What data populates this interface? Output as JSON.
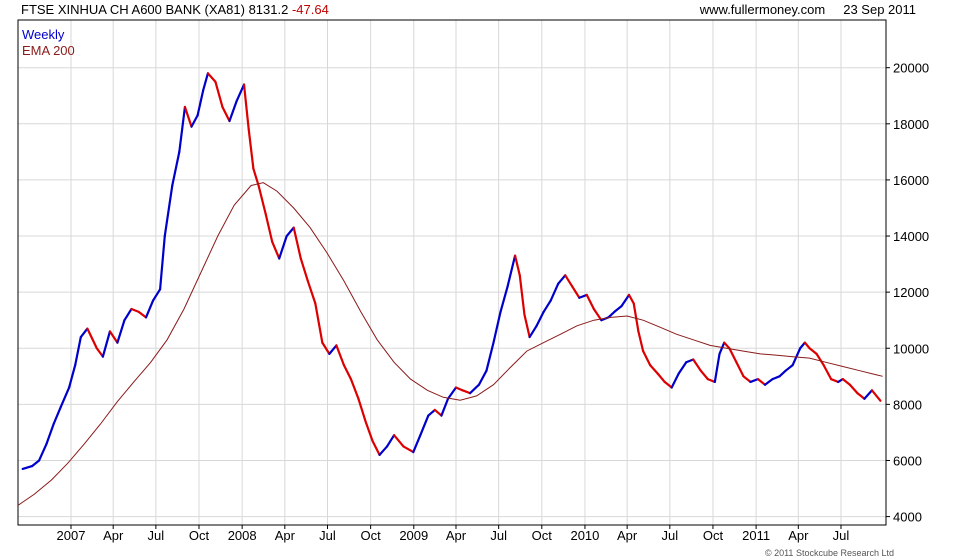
{
  "header": {
    "title": "FTSE XINHUA CH A600 BANK (XA81) 8131.2",
    "change": "-47.64",
    "site": "www.fullermoney.com",
    "date": "23 Sep 2011"
  },
  "legend": {
    "weekly": "Weekly",
    "ema": "EMA 200"
  },
  "copyright": "© 2011 Stockcube Research Ltd",
  "colors": {
    "up": "#0000cc",
    "down": "#dd0000",
    "ema": "#8b1a1a",
    "grid": "#d8d8d8"
  },
  "chart_data": {
    "type": "line",
    "title": "FTSE XINHUA CH A600 BANK (XA81)",
    "x_tick_labels": [
      "2007",
      "Apr",
      "Jul",
      "Oct",
      "2008",
      "Apr",
      "Jul",
      "Oct",
      "2009",
      "Apr",
      "Jul",
      "Oct",
      "2010",
      "Apr",
      "Jul",
      "Oct",
      "2011",
      "Apr",
      "Jul"
    ],
    "y_tick_labels": [
      "4000",
      "6000",
      "8000",
      "10000",
      "12000",
      "14000",
      "16000",
      "18000",
      "20000"
    ],
    "ylim": [
      3700,
      21700
    ],
    "xlim": [
      "2006-09-10",
      "2011-10-05"
    ],
    "grid": true,
    "series": [
      {
        "name": "Weekly",
        "points": [
          [
            "2006-09-20",
            5700
          ],
          [
            "2006-10-10",
            5800
          ],
          [
            "2006-10-25",
            6000
          ],
          [
            "2006-11-10",
            6600
          ],
          [
            "2006-11-25",
            7300
          ],
          [
            "2006-12-10",
            7900
          ],
          [
            "2006-12-28",
            8600
          ],
          [
            "2007-01-10",
            9400
          ],
          [
            "2007-01-22",
            10400
          ],
          [
            "2007-02-05",
            10700
          ],
          [
            "2007-02-25",
            10000
          ],
          [
            "2007-03-10",
            9700
          ],
          [
            "2007-03-25",
            10600
          ],
          [
            "2007-04-10",
            10200
          ],
          [
            "2007-04-25",
            11000
          ],
          [
            "2007-05-10",
            11400
          ],
          [
            "2007-05-25",
            11300
          ],
          [
            "2007-06-10",
            11100
          ],
          [
            "2007-06-25",
            11700
          ],
          [
            "2007-07-10",
            12100
          ],
          [
            "2007-07-20",
            14000
          ],
          [
            "2007-08-05",
            15800
          ],
          [
            "2007-08-20",
            17000
          ],
          [
            "2007-09-01",
            18600
          ],
          [
            "2007-09-15",
            17900
          ],
          [
            "2007-09-28",
            18300
          ],
          [
            "2007-10-10",
            19200
          ],
          [
            "2007-10-20",
            19800
          ],
          [
            "2007-11-05",
            19500
          ],
          [
            "2007-11-20",
            18600
          ],
          [
            "2007-12-05",
            18100
          ],
          [
            "2007-12-20",
            18800
          ],
          [
            "2008-01-05",
            19400
          ],
          [
            "2008-01-15",
            17800
          ],
          [
            "2008-01-25",
            16400
          ],
          [
            "2008-02-05",
            15800
          ],
          [
            "2008-02-20",
            14800
          ],
          [
            "2008-03-05",
            13800
          ],
          [
            "2008-03-20",
            13200
          ],
          [
            "2008-04-05",
            14000
          ],
          [
            "2008-04-20",
            14300
          ],
          [
            "2008-05-05",
            13200
          ],
          [
            "2008-05-20",
            12400
          ],
          [
            "2008-06-05",
            11600
          ],
          [
            "2008-06-20",
            10200
          ],
          [
            "2008-07-05",
            9800
          ],
          [
            "2008-07-20",
            10100
          ],
          [
            "2008-08-05",
            9400
          ],
          [
            "2008-08-20",
            8900
          ],
          [
            "2008-09-05",
            8200
          ],
          [
            "2008-09-20",
            7400
          ],
          [
            "2008-10-05",
            6700
          ],
          [
            "2008-10-20",
            6200
          ],
          [
            "2008-11-05",
            6500
          ],
          [
            "2008-11-20",
            6900
          ],
          [
            "2008-12-10",
            6500
          ],
          [
            "2008-12-31",
            6300
          ],
          [
            "2009-01-15",
            6900
          ],
          [
            "2009-02-01",
            7600
          ],
          [
            "2009-02-15",
            7800
          ],
          [
            "2009-03-01",
            7600
          ],
          [
            "2009-03-15",
            8200
          ],
          [
            "2009-04-01",
            8600
          ],
          [
            "2009-04-15",
            8500
          ],
          [
            "2009-05-01",
            8400
          ],
          [
            "2009-05-20",
            8700
          ],
          [
            "2009-06-05",
            9200
          ],
          [
            "2009-06-20",
            10200
          ],
          [
            "2009-07-05",
            11300
          ],
          [
            "2009-07-20",
            12200
          ],
          [
            "2009-08-05",
            13300
          ],
          [
            "2009-08-15",
            12600
          ],
          [
            "2009-08-25",
            11200
          ],
          [
            "2009-09-05",
            10400
          ],
          [
            "2009-09-20",
            10800
          ],
          [
            "2009-10-05",
            11300
          ],
          [
            "2009-10-20",
            11700
          ],
          [
            "2009-11-05",
            12300
          ],
          [
            "2009-11-20",
            12600
          ],
          [
            "2009-12-05",
            12200
          ],
          [
            "2009-12-20",
            11800
          ],
          [
            "2010-01-05",
            11900
          ],
          [
            "2010-01-20",
            11400
          ],
          [
            "2010-02-05",
            11000
          ],
          [
            "2010-02-20",
            11100
          ],
          [
            "2010-03-05",
            11300
          ],
          [
            "2010-03-20",
            11500
          ],
          [
            "2010-04-05",
            11900
          ],
          [
            "2010-04-15",
            11600
          ],
          [
            "2010-04-25",
            10600
          ],
          [
            "2010-05-05",
            9900
          ],
          [
            "2010-05-20",
            9400
          ],
          [
            "2010-06-05",
            9100
          ],
          [
            "2010-06-20",
            8800
          ],
          [
            "2010-07-05",
            8600
          ],
          [
            "2010-07-20",
            9100
          ],
          [
            "2010-08-05",
            9500
          ],
          [
            "2010-08-20",
            9600
          ],
          [
            "2010-09-05",
            9200
          ],
          [
            "2010-09-20",
            8900
          ],
          [
            "2010-10-05",
            8800
          ],
          [
            "2010-10-15",
            9800
          ],
          [
            "2010-10-25",
            10200
          ],
          [
            "2010-11-05",
            10000
          ],
          [
            "2010-11-20",
            9500
          ],
          [
            "2010-12-05",
            9000
          ],
          [
            "2010-12-20",
            8800
          ],
          [
            "2011-01-05",
            8900
          ],
          [
            "2011-01-20",
            8700
          ],
          [
            "2011-02-05",
            8900
          ],
          [
            "2011-02-20",
            9000
          ],
          [
            "2011-03-05",
            9200
          ],
          [
            "2011-03-20",
            9400
          ],
          [
            "2011-04-05",
            10000
          ],
          [
            "2011-04-15",
            10200
          ],
          [
            "2011-04-25",
            10000
          ],
          [
            "2011-05-10",
            9800
          ],
          [
            "2011-05-25",
            9400
          ],
          [
            "2011-06-10",
            8900
          ],
          [
            "2011-06-25",
            8800
          ],
          [
            "2011-07-05",
            8900
          ],
          [
            "2011-07-20",
            8700
          ],
          [
            "2011-08-05",
            8400
          ],
          [
            "2011-08-20",
            8200
          ],
          [
            "2011-09-05",
            8500
          ],
          [
            "2011-09-23",
            8130
          ]
        ]
      },
      {
        "name": "EMA 200",
        "points": [
          [
            "2006-09-10",
            4400
          ],
          [
            "2006-10-15",
            4800
          ],
          [
            "2006-11-20",
            5300
          ],
          [
            "2006-12-25",
            5900
          ],
          [
            "2007-01-30",
            6600
          ],
          [
            "2007-03-05",
            7300
          ],
          [
            "2007-04-10",
            8100
          ],
          [
            "2007-05-15",
            8800
          ],
          [
            "2007-06-20",
            9500
          ],
          [
            "2007-07-25",
            10300
          ],
          [
            "2007-08-30",
            11400
          ],
          [
            "2007-10-05",
            12700
          ],
          [
            "2007-11-10",
            14000
          ],
          [
            "2007-12-15",
            15100
          ],
          [
            "2008-01-20",
            15800
          ],
          [
            "2008-02-15",
            15900
          ],
          [
            "2008-03-15",
            15600
          ],
          [
            "2008-04-20",
            15000
          ],
          [
            "2008-05-25",
            14300
          ],
          [
            "2008-06-30",
            13400
          ],
          [
            "2008-08-05",
            12400
          ],
          [
            "2008-09-10",
            11300
          ],
          [
            "2008-10-15",
            10300
          ],
          [
            "2008-11-20",
            9500
          ],
          [
            "2008-12-25",
            8900
          ],
          [
            "2009-01-30",
            8500
          ],
          [
            "2009-03-05",
            8250
          ],
          [
            "2009-04-10",
            8150
          ],
          [
            "2009-05-15",
            8300
          ],
          [
            "2009-06-20",
            8700
          ],
          [
            "2009-07-25",
            9300
          ],
          [
            "2009-08-30",
            9900
          ],
          [
            "2009-10-05",
            10200
          ],
          [
            "2009-11-10",
            10500
          ],
          [
            "2009-12-15",
            10800
          ],
          [
            "2010-01-20",
            11000
          ],
          [
            "2010-02-25",
            11100
          ],
          [
            "2010-04-01",
            11150
          ],
          [
            "2010-05-05",
            11000
          ],
          [
            "2010-06-10",
            10750
          ],
          [
            "2010-07-15",
            10500
          ],
          [
            "2010-08-20",
            10300
          ],
          [
            "2010-09-25",
            10100
          ],
          [
            "2010-10-30",
            10000
          ],
          [
            "2010-12-05",
            9900
          ],
          [
            "2011-01-10",
            9800
          ],
          [
            "2011-02-15",
            9750
          ],
          [
            "2011-03-20",
            9700
          ],
          [
            "2011-04-25",
            9650
          ],
          [
            "2011-05-30",
            9500
          ],
          [
            "2011-07-05",
            9350
          ],
          [
            "2011-08-10",
            9200
          ],
          [
            "2011-09-15",
            9050
          ],
          [
            "2011-09-28",
            9000
          ]
        ]
      }
    ]
  }
}
